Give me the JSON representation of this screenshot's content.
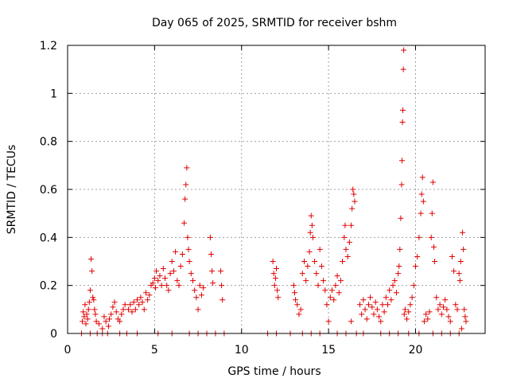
{
  "chart_data": {
    "type": "scatter",
    "title": "Day 065 of 2025, SRMTID for receiver bshm",
    "xlabel": "GPS time / hours",
    "ylabel": "SRMTID / TECUs",
    "xlim": [
      0,
      24
    ],
    "ylim": [
      0,
      1.2
    ],
    "xticks": [
      0,
      5,
      10,
      15,
      20
    ],
    "xtick_labels": [
      "0",
      "5",
      "10",
      "15",
      "20"
    ],
    "yticks": [
      0,
      0.2,
      0.4,
      0.6,
      0.8,
      1.0,
      1.2
    ],
    "ytick_labels": [
      "0",
      "0.2",
      "0.4",
      "0.6",
      "0.8",
      "1",
      "1.2"
    ],
    "grid": true,
    "marker": "+",
    "color": "#e00000",
    "series": [
      {
        "name": "SRMTID",
        "points": [
          [
            0.8,
            0.0
          ],
          [
            0.85,
            0.05
          ],
          [
            0.9,
            0.09
          ],
          [
            0.95,
            0.07
          ],
          [
            1.0,
            0.12
          ],
          [
            1.05,
            0.04
          ],
          [
            1.1,
            0.08
          ],
          [
            1.15,
            0.06
          ],
          [
            1.2,
            0.1
          ],
          [
            1.25,
            0.13
          ],
          [
            1.3,
            0.18
          ],
          [
            1.35,
            0.31
          ],
          [
            1.4,
            0.26
          ],
          [
            1.45,
            0.15
          ],
          [
            1.5,
            0.14
          ],
          [
            1.55,
            0.1
          ],
          [
            1.6,
            0.08
          ],
          [
            1.65,
            0.05
          ],
          [
            1.7,
            0.0
          ],
          [
            1.8,
            0.04
          ],
          [
            2.0,
            0.02
          ],
          [
            2.1,
            0.07
          ],
          [
            2.2,
            0.05
          ],
          [
            2.3,
            0.0
          ],
          [
            2.35,
            0.03
          ],
          [
            2.4,
            0.06
          ],
          [
            2.5,
            0.08
          ],
          [
            2.6,
            0.11
          ],
          [
            2.7,
            0.13
          ],
          [
            2.8,
            0.09
          ],
          [
            2.9,
            0.06
          ],
          [
            3.0,
            0.05
          ],
          [
            3.1,
            0.08
          ],
          [
            3.2,
            0.1
          ],
          [
            3.3,
            0.12
          ],
          [
            3.4,
            0.0
          ],
          [
            3.5,
            0.1
          ],
          [
            3.6,
            0.12
          ],
          [
            3.7,
            0.09
          ],
          [
            3.8,
            0.13
          ],
          [
            3.9,
            0.1
          ],
          [
            4.0,
            0.14
          ],
          [
            4.1,
            0.12
          ],
          [
            4.2,
            0.15
          ],
          [
            4.3,
            0.13
          ],
          [
            4.4,
            0.1
          ],
          [
            4.5,
            0.17
          ],
          [
            4.6,
            0.14
          ],
          [
            4.7,
            0.16
          ],
          [
            4.8,
            0.2
          ],
          [
            4.9,
            0.21
          ],
          [
            5.0,
            0.23
          ],
          [
            5.05,
            0.19
          ],
          [
            5.1,
            0.26
          ],
          [
            5.2,
            0.22
          ],
          [
            5.3,
            0.24
          ],
          [
            5.4,
            0.2
          ],
          [
            5.5,
            0.27
          ],
          [
            5.6,
            0.23
          ],
          [
            5.7,
            0.2
          ],
          [
            5.8,
            0.18
          ],
          [
            5.9,
            0.25
          ],
          [
            6.0,
            0.3
          ],
          [
            6.1,
            0.26
          ],
          [
            6.2,
            0.34
          ],
          [
            6.3,
            0.22
          ],
          [
            6.4,
            0.2
          ],
          [
            6.5,
            0.28
          ],
          [
            6.6,
            0.33
          ],
          [
            6.7,
            0.46
          ],
          [
            6.75,
            0.56
          ],
          [
            6.8,
            0.62
          ],
          [
            6.85,
            0.69
          ],
          [
            6.9,
            0.4
          ],
          [
            6.95,
            0.35
          ],
          [
            7.0,
            0.3
          ],
          [
            7.1,
            0.25
          ],
          [
            7.2,
            0.22
          ],
          [
            7.3,
            0.18
          ],
          [
            7.4,
            0.15
          ],
          [
            7.5,
            0.1
          ],
          [
            7.6,
            0.2
          ],
          [
            7.7,
            0.16
          ],
          [
            7.8,
            0.19
          ],
          [
            8.0,
            0.0
          ],
          [
            8.2,
            0.4
          ],
          [
            8.25,
            0.33
          ],
          [
            8.3,
            0.26
          ],
          [
            8.35,
            0.21
          ],
          [
            8.5,
            0.0
          ],
          [
            8.8,
            0.26
          ],
          [
            8.85,
            0.2
          ],
          [
            8.9,
            0.14
          ],
          [
            9.0,
            0.0
          ],
          [
            11.5,
            0.0
          ],
          [
            11.8,
            0.3
          ],
          [
            11.85,
            0.25
          ],
          [
            11.9,
            0.2
          ],
          [
            11.95,
            0.23
          ],
          [
            12.0,
            0.27
          ],
          [
            12.05,
            0.18
          ],
          [
            12.1,
            0.15
          ],
          [
            12.8,
            0.0
          ],
          [
            13.0,
            0.2
          ],
          [
            13.05,
            0.17
          ],
          [
            13.1,
            0.14
          ],
          [
            13.2,
            0.12
          ],
          [
            13.3,
            0.08
          ],
          [
            13.4,
            0.1
          ],
          [
            13.5,
            0.25
          ],
          [
            13.6,
            0.3
          ],
          [
            13.7,
            0.22
          ],
          [
            13.8,
            0.28
          ],
          [
            13.9,
            0.34
          ],
          [
            13.95,
            0.42
          ],
          [
            14.0,
            0.49
          ],
          [
            14.05,
            0.45
          ],
          [
            14.1,
            0.4
          ],
          [
            14.2,
            0.3
          ],
          [
            14.3,
            0.25
          ],
          [
            14.4,
            0.2
          ],
          [
            14.5,
            0.35
          ],
          [
            14.6,
            0.28
          ],
          [
            14.7,
            0.22
          ],
          [
            14.8,
            0.18
          ],
          [
            14.9,
            0.12
          ],
          [
            15.0,
            0.05
          ],
          [
            15.1,
            0.15
          ],
          [
            15.2,
            0.18
          ],
          [
            15.3,
            0.14
          ],
          [
            15.4,
            0.2
          ],
          [
            15.5,
            0.24
          ],
          [
            15.6,
            0.17
          ],
          [
            15.7,
            0.22
          ],
          [
            15.8,
            0.3
          ],
          [
            15.9,
            0.4
          ],
          [
            15.95,
            0.45
          ],
          [
            16.0,
            0.35
          ],
          [
            16.1,
            0.32
          ],
          [
            16.2,
            0.38
          ],
          [
            16.3,
            0.45
          ],
          [
            16.35,
            0.52
          ],
          [
            16.4,
            0.6
          ],
          [
            16.45,
            0.58
          ],
          [
            16.5,
            0.55
          ],
          [
            16.3,
            0.05
          ],
          [
            16.6,
            0.0
          ],
          [
            16.8,
            0.12
          ],
          [
            16.9,
            0.08
          ],
          [
            17.0,
            0.14
          ],
          [
            17.1,
            0.1
          ],
          [
            17.2,
            0.06
          ],
          [
            17.3,
            0.12
          ],
          [
            17.4,
            0.15
          ],
          [
            17.5,
            0.11
          ],
          [
            17.6,
            0.08
          ],
          [
            17.7,
            0.13
          ],
          [
            17.8,
            0.1
          ],
          [
            17.9,
            0.07
          ],
          [
            18.0,
            0.05
          ],
          [
            18.1,
            0.12
          ],
          [
            18.2,
            0.09
          ],
          [
            18.3,
            0.15
          ],
          [
            18.4,
            0.12
          ],
          [
            18.5,
            0.18
          ],
          [
            18.6,
            0.14
          ],
          [
            18.7,
            0.2
          ],
          [
            18.8,
            0.22
          ],
          [
            18.9,
            0.17
          ],
          [
            19.0,
            0.25
          ],
          [
            19.05,
            0.28
          ],
          [
            19.1,
            0.35
          ],
          [
            19.15,
            0.48
          ],
          [
            19.2,
            0.62
          ],
          [
            19.22,
            0.72
          ],
          [
            19.25,
            0.88
          ],
          [
            19.27,
            0.93
          ],
          [
            19.3,
            1.1
          ],
          [
            19.32,
            1.18
          ],
          [
            19.35,
            0.08
          ],
          [
            19.4,
            0.1
          ],
          [
            19.5,
            0.06
          ],
          [
            19.6,
            0.09
          ],
          [
            19.7,
            0.12
          ],
          [
            19.8,
            0.15
          ],
          [
            19.9,
            0.2
          ],
          [
            20.0,
            0.28
          ],
          [
            20.1,
            0.32
          ],
          [
            20.2,
            0.4
          ],
          [
            20.3,
            0.5
          ],
          [
            20.35,
            0.58
          ],
          [
            20.4,
            0.65
          ],
          [
            20.45,
            0.55
          ],
          [
            20.5,
            0.05
          ],
          [
            20.6,
            0.08
          ],
          [
            20.7,
            0.06
          ],
          [
            20.8,
            0.09
          ],
          [
            20.9,
            0.4
          ],
          [
            20.95,
            0.5
          ],
          [
            21.0,
            0.63
          ],
          [
            21.05,
            0.36
          ],
          [
            21.1,
            0.3
          ],
          [
            21.2,
            0.15
          ],
          [
            21.3,
            0.1
          ],
          [
            21.4,
            0.12
          ],
          [
            21.5,
            0.08
          ],
          [
            21.6,
            0.11
          ],
          [
            21.7,
            0.14
          ],
          [
            21.8,
            0.1
          ],
          [
            21.9,
            0.07
          ],
          [
            22.0,
            0.05
          ],
          [
            22.1,
            0.32
          ],
          [
            22.2,
            0.26
          ],
          [
            22.3,
            0.12
          ],
          [
            22.4,
            0.1
          ],
          [
            22.5,
            0.25
          ],
          [
            22.55,
            0.22
          ],
          [
            22.6,
            0.3
          ],
          [
            22.65,
            0.02
          ],
          [
            22.7,
            0.42
          ],
          [
            22.75,
            0.35
          ],
          [
            22.8,
            0.1
          ],
          [
            22.85,
            0.07
          ],
          [
            22.9,
            0.05
          ],
          [
            1.3,
            0.0
          ],
          [
            2.0,
            0.0
          ],
          [
            3.0,
            0.0
          ],
          [
            4.0,
            0.0
          ],
          [
            5.2,
            0.0
          ],
          [
            6.0,
            0.0
          ],
          [
            7.0,
            0.0
          ],
          [
            7.5,
            0.0
          ],
          [
            12.0,
            0.0
          ],
          [
            13.5,
            0.0
          ],
          [
            14.0,
            0.0
          ],
          [
            14.5,
            0.0
          ],
          [
            15.5,
            0.0
          ],
          [
            16.0,
            0.0
          ],
          [
            17.0,
            0.0
          ],
          [
            18.0,
            0.0
          ],
          [
            18.5,
            0.0
          ],
          [
            19.0,
            0.0
          ],
          [
            19.6,
            0.0
          ],
          [
            20.2,
            0.0
          ],
          [
            21.0,
            0.0
          ],
          [
            21.5,
            0.0
          ],
          [
            22.0,
            0.0
          ],
          [
            22.5,
            0.0
          ]
        ]
      }
    ]
  }
}
